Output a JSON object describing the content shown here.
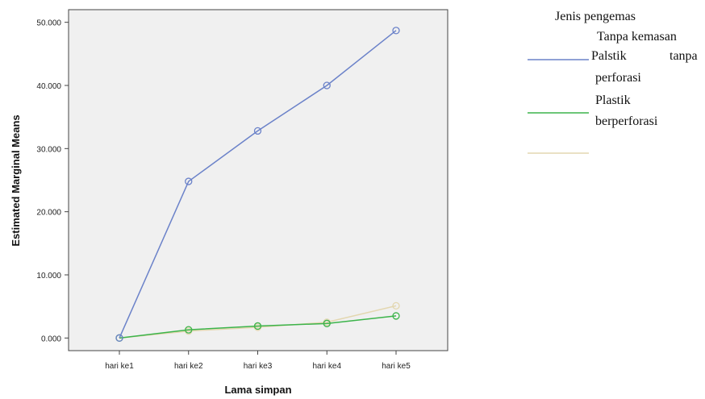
{
  "chart_data": {
    "type": "line",
    "title": "",
    "xlabel": "Lama simpan",
    "ylabel": "Estimated Marginal Means",
    "categories": [
      "hari ke1",
      "hari ke2",
      "hari ke3",
      "hari ke4",
      "hari ke5"
    ],
    "ylim": [
      -2,
      52
    ],
    "yticks": [
      "0.000",
      "10.000",
      "20.000",
      "30.000",
      "40.000",
      "50.000"
    ],
    "grid": false,
    "legend_placement": "right",
    "legend": {
      "title": "Jenis pengemas",
      "line1": "Tanpa kemasan",
      "line2a": "Palstik",
      "line2b": "tanpa",
      "line3": "perforasi",
      "line4": "Plastik",
      "line5": "berperforasi"
    },
    "series": [
      {
        "values": [
          0.0,
          24.8,
          32.8,
          40.0,
          48.7
        ],
        "color": "#6b82c9"
      },
      {
        "values": [
          0.0,
          1.3,
          1.9,
          2.3,
          3.5
        ],
        "color": "#3cb44b"
      },
      {
        "values": [
          0.0,
          1.1,
          1.7,
          2.5,
          5.1
        ],
        "color": "#e3d7b0"
      }
    ]
  }
}
